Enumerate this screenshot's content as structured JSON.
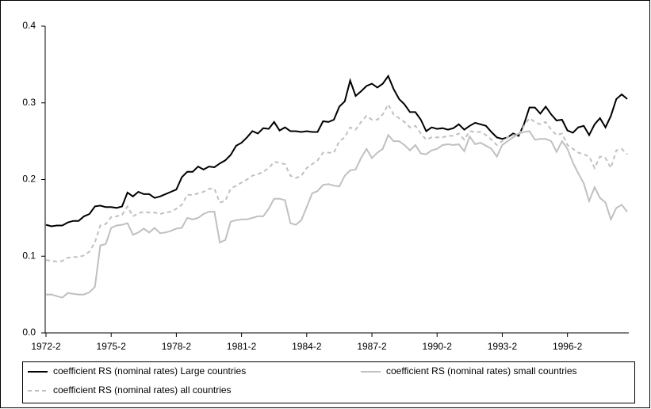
{
  "chart_data": {
    "type": "line",
    "categories": [
      "1972-2",
      null,
      null,
      null,
      null,
      null,
      null,
      null,
      null,
      null,
      null,
      null,
      "1975-2",
      null,
      null,
      null,
      null,
      null,
      null,
      null,
      null,
      null,
      null,
      null,
      "1978-2",
      null,
      null,
      null,
      null,
      null,
      null,
      null,
      null,
      null,
      null,
      null,
      "1981-2",
      null,
      null,
      null,
      null,
      null,
      null,
      null,
      null,
      null,
      null,
      null,
      "1984-2",
      null,
      null,
      null,
      null,
      null,
      null,
      null,
      null,
      null,
      null,
      null,
      "1987-2",
      null,
      null,
      null,
      null,
      null,
      null,
      null,
      null,
      null,
      null,
      null,
      "1990-2",
      null,
      null,
      null,
      null,
      null,
      null,
      null,
      null,
      null,
      null,
      null,
      "1993-2",
      null,
      null,
      null,
      null,
      null,
      null,
      null,
      null,
      null,
      null,
      null,
      "1996-2",
      null,
      null,
      null,
      null,
      null,
      null,
      null,
      null,
      null,
      null,
      null
    ],
    "series": [
      {
        "name": "coefficient RS (nominal rates) Large countries",
        "color": "#000000",
        "dash": false,
        "values": [
          0.141,
          0.139,
          0.14,
          0.14,
          0.144,
          0.146,
          0.146,
          0.152,
          0.155,
          0.165,
          0.166,
          0.164,
          0.164,
          0.163,
          0.165,
          0.183,
          0.178,
          0.184,
          0.181,
          0.181,
          0.176,
          0.178,
          0.181,
          0.184,
          0.187,
          0.203,
          0.21,
          0.21,
          0.217,
          0.213,
          0.217,
          0.216,
          0.221,
          0.225,
          0.232,
          0.244,
          0.248,
          0.255,
          0.263,
          0.26,
          0.267,
          0.266,
          0.275,
          0.264,
          0.268,
          0.263,
          0.263,
          0.262,
          0.263,
          0.262,
          0.262,
          0.276,
          0.275,
          0.278,
          0.295,
          0.302,
          0.329,
          0.309,
          0.315,
          0.322,
          0.325,
          0.32,
          0.325,
          0.335,
          0.318,
          0.305,
          0.298,
          0.288,
          0.288,
          0.278,
          0.263,
          0.268,
          0.266,
          0.267,
          0.265,
          0.267,
          0.272,
          0.265,
          0.27,
          0.274,
          0.272,
          0.27,
          0.262,
          0.255,
          0.253,
          0.255,
          0.26,
          0.257,
          0.272,
          0.294,
          0.294,
          0.286,
          0.295,
          0.285,
          0.277,
          0.278,
          0.264,
          0.261,
          0.268,
          0.27,
          0.258,
          0.272,
          0.28,
          0.268,
          0.283,
          0.305,
          0.311,
          0.305
        ]
      },
      {
        "name": "coefficient RS (nominal rates) small countries",
        "color": "#c0c0c0",
        "dash": false,
        "values": [
          0.05,
          0.05,
          0.048,
          0.046,
          0.052,
          0.051,
          0.05,
          0.05,
          0.053,
          0.06,
          0.114,
          0.116,
          0.137,
          0.14,
          0.141,
          0.143,
          0.128,
          0.131,
          0.136,
          0.131,
          0.137,
          0.13,
          0.131,
          0.133,
          0.136,
          0.137,
          0.15,
          0.148,
          0.15,
          0.155,
          0.158,
          0.158,
          0.118,
          0.121,
          0.145,
          0.147,
          0.148,
          0.148,
          0.15,
          0.152,
          0.152,
          0.162,
          0.175,
          0.175,
          0.173,
          0.143,
          0.141,
          0.147,
          0.164,
          0.182,
          0.185,
          0.193,
          0.194,
          0.192,
          0.191,
          0.205,
          0.212,
          0.213,
          0.228,
          0.24,
          0.228,
          0.235,
          0.24,
          0.258,
          0.25,
          0.25,
          0.245,
          0.238,
          0.245,
          0.234,
          0.233,
          0.238,
          0.24,
          0.245,
          0.246,
          0.245,
          0.246,
          0.237,
          0.256,
          0.246,
          0.248,
          0.244,
          0.24,
          0.23,
          0.245,
          0.25,
          0.255,
          0.26,
          0.262,
          0.263,
          0.252,
          0.253,
          0.253,
          0.25,
          0.236,
          0.25,
          0.24,
          0.222,
          0.208,
          0.195,
          0.172,
          0.19,
          0.176,
          0.17,
          0.148,
          0.163,
          0.167,
          0.158
        ]
      },
      {
        "name": "coefficient RS (nominal rates) all countries",
        "color": "#c0c0c0",
        "dash": true,
        "values": [
          0.095,
          0.094,
          0.093,
          0.094,
          0.098,
          0.099,
          0.099,
          0.101,
          0.106,
          0.118,
          0.14,
          0.142,
          0.151,
          0.152,
          0.154,
          0.165,
          0.152,
          0.156,
          0.158,
          0.157,
          0.157,
          0.155,
          0.157,
          0.158,
          0.162,
          0.167,
          0.18,
          0.18,
          0.182,
          0.184,
          0.188,
          0.188,
          0.17,
          0.172,
          0.188,
          0.192,
          0.196,
          0.2,
          0.205,
          0.207,
          0.21,
          0.215,
          0.223,
          0.222,
          0.22,
          0.205,
          0.202,
          0.205,
          0.215,
          0.22,
          0.225,
          0.235,
          0.235,
          0.235,
          0.25,
          0.255,
          0.268,
          0.265,
          0.275,
          0.283,
          0.278,
          0.278,
          0.285,
          0.298,
          0.285,
          0.28,
          0.275,
          0.268,
          0.27,
          0.26,
          0.252,
          0.255,
          0.255,
          0.255,
          0.257,
          0.257,
          0.26,
          0.252,
          0.263,
          0.262,
          0.262,
          0.258,
          0.252,
          0.245,
          0.25,
          0.255,
          0.258,
          0.258,
          0.27,
          0.28,
          0.275,
          0.272,
          0.275,
          0.265,
          0.258,
          0.26,
          0.245,
          0.24,
          0.235,
          0.233,
          0.23,
          0.215,
          0.23,
          0.228,
          0.215,
          0.238,
          0.24,
          0.233
        ]
      }
    ],
    "ylim": [
      0,
      0.4
    ],
    "yticks": [
      {
        "value": 0,
        "label": "0.0"
      },
      0.1,
      0.2,
      0.3,
      0.4
    ]
  }
}
